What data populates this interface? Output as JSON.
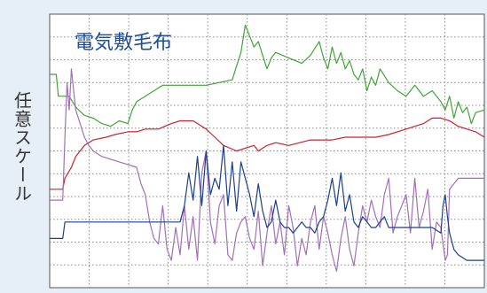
{
  "chart_data": {
    "type": "line",
    "title": "電気敷毛布",
    "xlabel": "",
    "ylabel": "任意スケール",
    "grid": true,
    "legend": "none",
    "ylim": [
      0,
      100
    ],
    "colors": {
      "green": "#3fa535",
      "red": "#d0202e",
      "purple": "#a070b8",
      "blue": "#1a3f8f"
    },
    "series": [
      {
        "color_key": "green",
        "x": [
          0,
          1.5,
          2,
          2.6,
          3.5,
          4.5,
          6,
          8,
          10,
          12,
          14,
          16,
          18,
          19,
          20,
          22,
          24,
          26,
          30,
          36,
          42,
          44,
          45,
          46,
          47,
          48,
          49,
          50,
          51,
          52,
          55,
          58,
          60,
          62,
          63,
          64,
          65,
          66,
          67,
          68,
          69,
          70,
          71,
          72,
          73,
          74,
          75,
          76,
          78,
          80,
          82,
          84,
          86,
          88,
          90,
          91,
          92,
          93,
          94,
          95,
          96,
          97,
          98,
          100
        ],
        "y": [
          78,
          78,
          70,
          70,
          70,
          70,
          66,
          63,
          62,
          60,
          59,
          61,
          60,
          65,
          68,
          70,
          72,
          74,
          74,
          74,
          76,
          86,
          96,
          92,
          88,
          90,
          85,
          80,
          84,
          86,
          84,
          82,
          85,
          90,
          84,
          80,
          88,
          82,
          86,
          80,
          83,
          78,
          76,
          80,
          72,
          77,
          74,
          80,
          75,
          72,
          70,
          74,
          70,
          72,
          68,
          65,
          70,
          62,
          68,
          64,
          66,
          60,
          64,
          65
        ]
      },
      {
        "color_key": "red",
        "x": [
          0,
          3,
          3.5,
          5,
          6,
          8,
          10,
          13,
          15,
          18,
          20,
          22,
          25,
          28,
          30,
          33,
          36,
          38,
          40,
          43,
          45,
          47,
          48,
          50,
          52,
          55,
          60,
          65,
          68,
          72,
          75,
          78,
          82,
          86,
          88,
          90,
          92,
          94,
          96,
          98,
          100
        ],
        "y": [
          36,
          36,
          40,
          44,
          48,
          52,
          54,
          55,
          56,
          57,
          57,
          58,
          58,
          60,
          61,
          61,
          58,
          55,
          52,
          50,
          51,
          52,
          50,
          52,
          53,
          52,
          54,
          54,
          55,
          55,
          55,
          56,
          58,
          60,
          62,
          62,
          61,
          59,
          58,
          57,
          55
        ]
      },
      {
        "color_key": "purple",
        "x": [
          0,
          3,
          3.5,
          4,
          4.5,
          5,
          5.5,
          6,
          7,
          8,
          9,
          10,
          12,
          14,
          16,
          18,
          20,
          21,
          22,
          23,
          24,
          25,
          26,
          27,
          28,
          29,
          30,
          31,
          32,
          33,
          34,
          35,
          36,
          37,
          38,
          39,
          40,
          41,
          42,
          43,
          44,
          45,
          46,
          47,
          48,
          49,
          50,
          51,
          52,
          53,
          54,
          55,
          56,
          57,
          58,
          59,
          60,
          61,
          62,
          63,
          64,
          65,
          66,
          67,
          68,
          69,
          70,
          71,
          72,
          73,
          74,
          75,
          76,
          77,
          78,
          79,
          80,
          81,
          82,
          83,
          84,
          85,
          86,
          87,
          88,
          89,
          90,
          91,
          91.5,
          92,
          94,
          96,
          98,
          100
        ],
        "y": [
          32,
          32,
          55,
          75,
          65,
          80,
          72,
          65,
          60,
          55,
          52,
          50,
          48,
          47,
          46,
          45,
          44,
          38,
          34,
          24,
          18,
          16,
          30,
          14,
          10,
          22,
          12,
          30,
          14,
          26,
          10,
          42,
          50,
          24,
          16,
          30,
          34,
          12,
          10,
          20,
          24,
          26,
          18,
          14,
          28,
          8,
          20,
          30,
          16,
          24,
          12,
          30,
          22,
          8,
          18,
          12,
          24,
          30,
          14,
          26,
          20,
          12,
          6,
          18,
          26,
          14,
          8,
          20,
          30,
          24,
          32,
          26,
          22,
          34,
          40,
          20,
          26,
          30,
          34,
          20,
          40,
          22,
          28,
          36,
          14,
          24,
          22,
          10,
          12,
          36,
          40,
          40,
          40,
          40
        ]
      },
      {
        "color_key": "blue",
        "x": [
          0,
          3,
          3.5,
          5,
          8,
          10,
          12,
          14,
          16,
          18,
          20,
          22,
          24,
          26,
          28,
          30,
          31,
          32,
          33,
          34,
          35,
          36,
          37,
          38,
          39,
          40,
          41,
          42,
          43,
          44,
          45,
          46,
          47,
          48,
          49,
          50,
          51,
          52,
          53,
          54,
          55,
          56,
          57,
          58,
          59,
          60,
          61,
          62,
          63,
          64,
          65,
          66,
          67,
          68,
          69,
          70,
          71,
          72,
          73,
          74,
          75,
          76,
          77,
          78,
          79,
          80,
          82,
          84,
          86,
          88,
          90,
          90.5,
          91,
          91.5,
          92,
          93,
          94,
          96,
          98,
          100
        ],
        "y": [
          18,
          18,
          24,
          24,
          24,
          24,
          24,
          24,
          24,
          24,
          24,
          24,
          24,
          24,
          24,
          24,
          30,
          42,
          32,
          48,
          30,
          50,
          34,
          40,
          36,
          52,
          30,
          46,
          28,
          46,
          40,
          34,
          26,
          38,
          28,
          22,
          24,
          32,
          24,
          22,
          22,
          20,
          22,
          24,
          22,
          22,
          20,
          24,
          26,
          32,
          40,
          30,
          42,
          28,
          34,
          24,
          22,
          26,
          24,
          22,
          22,
          24,
          26,
          22,
          22,
          22,
          22,
          22,
          22,
          22,
          20,
          30,
          34,
          26,
          20,
          14,
          12,
          10,
          10,
          10
        ]
      }
    ]
  }
}
